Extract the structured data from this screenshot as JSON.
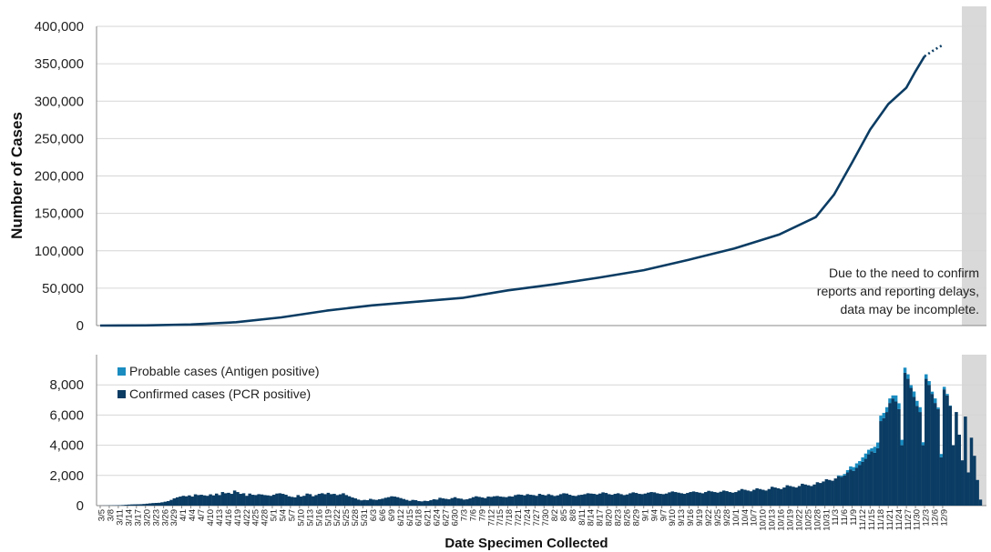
{
  "chart_data": [
    {
      "type": "line",
      "title": "",
      "ylabel": "Number of Cases",
      "xlabel": "",
      "ylim": [
        0,
        400000
      ],
      "yticks": [
        "0",
        "50,000",
        "100,000",
        "150,000",
        "200,000",
        "250,000",
        "300,000",
        "350,000",
        "400,000"
      ],
      "grid": true,
      "x": [
        "3/5",
        "3/20",
        "4/4",
        "4/19",
        "5/4",
        "5/19",
        "6/3",
        "6/18",
        "7/3",
        "7/18",
        "8/2",
        "8/17",
        "9/1",
        "9/16",
        "10/1",
        "10/16",
        "10/28",
        "11/3",
        "11/9",
        "11/15",
        "11/21",
        "11/27",
        "11/30",
        "12/3",
        "12/6",
        "12/9"
      ],
      "series": [
        {
          "name": "",
          "values": [
            0,
            300,
            1500,
            4500,
            11000,
            20000,
            27000,
            32000,
            37000,
            47000,
            55000,
            64000,
            74000,
            88000,
            103000,
            122000,
            145000,
            175000,
            218000,
            262000,
            296000,
            318000,
            340000,
            360000,
            368000,
            375000
          ]
        }
      ],
      "incomplete_from": "12/3",
      "annotation": [
        "Due to the need to confirm",
        "reports and reporting delays,",
        "data may be incomplete."
      ]
    },
    {
      "type": "bar",
      "stacked": true,
      "xlabel": "Date Specimen Collected",
      "ylabel": "",
      "ylim": [
        0,
        10000
      ],
      "yticks": [
        "0",
        "2,000",
        "4,000",
        "6,000",
        "8,000"
      ],
      "grid": true,
      "legend_position": "top-left",
      "start_date": "3/5",
      "date_labels": [
        "3/5",
        "3/8",
        "3/11",
        "3/14",
        "3/17",
        "3/20",
        "3/23",
        "3/26",
        "3/29",
        "4/1",
        "4/4",
        "4/7",
        "4/10",
        "4/13",
        "4/16",
        "4/19",
        "4/22",
        "4/25",
        "4/28",
        "5/1",
        "5/4",
        "5/7",
        "5/10",
        "5/13",
        "5/16",
        "5/19",
        "5/22",
        "5/25",
        "5/28",
        "5/31",
        "6/3",
        "6/6",
        "6/9",
        "6/12",
        "6/15",
        "6/18",
        "6/21",
        "6/24",
        "6/27",
        "6/30",
        "7/3",
        "7/6",
        "7/9",
        "7/12",
        "7/15",
        "7/18",
        "7/21",
        "7/24",
        "7/27",
        "7/30",
        "8/2",
        "8/5",
        "8/8",
        "8/11",
        "8/14",
        "8/17",
        "8/20",
        "8/23",
        "8/26",
        "8/29",
        "9/1",
        "9/4",
        "9/7",
        "9/10",
        "9/13",
        "9/16",
        "9/19",
        "9/22",
        "9/25",
        "9/28",
        "10/1",
        "10/4",
        "10/7",
        "10/10",
        "10/13",
        "10/16",
        "10/19",
        "10/22",
        "10/25",
        "10/28",
        "10/31",
        "11/3",
        "11/6",
        "11/9",
        "11/12",
        "11/15",
        "11/18",
        "11/21",
        "11/24",
        "11/27",
        "11/30",
        "12/3",
        "12/6",
        "12/9"
      ],
      "incomplete_from": "12/3",
      "series": [
        {
          "name": "Confirmed cases (PCR positive)",
          "values": [
            5,
            8,
            10,
            15,
            20,
            25,
            30,
            40,
            55,
            70,
            80,
            85,
            90,
            95,
            110,
            130,
            150,
            170,
            180,
            190,
            220,
            260,
            300,
            380,
            480,
            550,
            600,
            650,
            620,
            680,
            600,
            750,
            700,
            720,
            680,
            650,
            750,
            680,
            800,
            700,
            900,
            820,
            850,
            780,
            1000,
            900,
            780,
            820,
            650,
            800,
            720,
            700,
            760,
            740,
            700,
            680,
            650,
            720,
            800,
            820,
            780,
            720,
            620,
            580,
            550,
            700,
            600,
            650,
            800,
            760,
            620,
            700,
            780,
            820,
            760,
            850,
            760,
            780,
            700,
            750,
            820,
            700,
            620,
            540,
            480,
            400,
            350,
            380,
            360,
            450,
            400,
            380,
            420,
            460,
            520,
            560,
            620,
            600,
            560,
            500,
            440,
            380,
            320,
            380,
            360,
            300,
            280,
            320,
            300,
            360,
            420,
            400,
            520,
            480,
            450,
            420,
            500,
            560,
            480,
            460,
            400,
            420,
            480,
            560,
            620,
            580,
            540,
            500,
            600,
            580,
            620,
            640,
            600,
            580,
            560,
            620,
            600,
            700,
            740,
            720,
            680,
            760,
            720,
            700,
            650,
            780,
            720,
            680,
            760,
            700,
            640,
            680,
            760,
            820,
            800,
            720,
            660,
            640,
            700,
            720,
            760,
            820,
            800,
            780,
            740,
            800,
            880,
            840,
            760,
            720,
            780,
            820,
            760,
            700,
            740,
            820,
            880,
            840,
            780,
            760,
            800,
            860,
            900,
            880,
            820,
            780,
            760,
            800,
            880,
            940,
            900,
            860,
            820,
            780,
            840,
            900,
            940,
            900,
            860,
            820,
            900,
            980,
            940,
            900,
            860,
            920,
            1000,
            960,
            900,
            860,
            900,
            1000,
            1100,
            1050,
            1000,
            950,
            1050,
            1150,
            1100,
            1050,
            1000,
            1100,
            1250,
            1200,
            1150,
            1100,
            1200,
            1350,
            1300,
            1250,
            1200,
            1300,
            1450,
            1400,
            1350,
            1300,
            1400,
            1550,
            1500,
            1600,
            1750,
            1700,
            1650,
            1800,
            1950,
            1900,
            2000,
            2200,
            2400,
            2300,
            2500,
            2700,
            2900,
            3100,
            3400,
            3600,
            3500,
            3800,
            5600,
            5800,
            6200,
            6800,
            7100,
            6900,
            6400,
            4000,
            8800,
            8400,
            7800,
            7200,
            6600,
            6200,
            4000,
            8400,
            8000,
            7400,
            6800,
            6400,
            3200,
            7700,
            7300,
            6600,
            4000,
            6200,
            4700,
            3000,
            5900,
            2200,
            4500,
            3300,
            1700,
            400
          ]
        },
        {
          "name": "Probable cases (Antigen positive)",
          "values": [
            0,
            0,
            0,
            0,
            0,
            0,
            0,
            0,
            0,
            0,
            0,
            0,
            0,
            0,
            0,
            0,
            0,
            0,
            0,
            0,
            0,
            0,
            0,
            0,
            0,
            0,
            0,
            0,
            0,
            0,
            0,
            0,
            0,
            0,
            0,
            0,
            0,
            0,
            0,
            0,
            0,
            0,
            0,
            0,
            0,
            0,
            0,
            0,
            0,
            0,
            0,
            0,
            0,
            0,
            0,
            0,
            0,
            0,
            0,
            0,
            0,
            0,
            0,
            0,
            0,
            0,
            0,
            0,
            0,
            0,
            0,
            0,
            0,
            0,
            0,
            0,
            0,
            0,
            0,
            0,
            0,
            0,
            0,
            0,
            0,
            0,
            0,
            0,
            0,
            0,
            0,
            0,
            0,
            0,
            0,
            0,
            0,
            0,
            0,
            0,
            0,
            0,
            0,
            0,
            0,
            0,
            0,
            0,
            0,
            0,
            0,
            0,
            0,
            0,
            0,
            0,
            0,
            0,
            0,
            0,
            0,
            0,
            0,
            0,
            0,
            0,
            0,
            0,
            0,
            0,
            0,
            0,
            0,
            0,
            0,
            0,
            0,
            0,
            0,
            0,
            0,
            0,
            0,
            0,
            0,
            0,
            0,
            0,
            0,
            0,
            0,
            0,
            0,
            0,
            0,
            0,
            0,
            0,
            0,
            0,
            0,
            0,
            0,
            0,
            0,
            0,
            0,
            0,
            0,
            0,
            0,
            0,
            0,
            0,
            0,
            0,
            0,
            0,
            0,
            0,
            0,
            0,
            0,
            0,
            0,
            0,
            0,
            0,
            0,
            0,
            0,
            0,
            0,
            0,
            0,
            0,
            0,
            0,
            0,
            0,
            0,
            0,
            0,
            0,
            0,
            0,
            0,
            0,
            0,
            0,
            0,
            0,
            0,
            0,
            0,
            0,
            0,
            0,
            0,
            0,
            0,
            0,
            0,
            0,
            0,
            0,
            0,
            0,
            0,
            0,
            0,
            0,
            0,
            0,
            0,
            0,
            0,
            0,
            0,
            0,
            0,
            0,
            0,
            0,
            50,
            80,
            100,
            150,
            200,
            250,
            300,
            250,
            300,
            350,
            300,
            200,
            400,
            380,
            360,
            340,
            320,
            300,
            200,
            400,
            380,
            360,
            340,
            300,
            180,
            360,
            340,
            320,
            200,
            300,
            250,
            150,
            300,
            100,
            220,
            170,
            100,
            30
          ]
        }
      ]
    }
  ],
  "colors": {
    "line": "#0b3c63",
    "confirmed": "#0b3c63",
    "probable": "#1a8cc0",
    "grid": "#d6d6d6",
    "shade": "#d9d9d9"
  }
}
